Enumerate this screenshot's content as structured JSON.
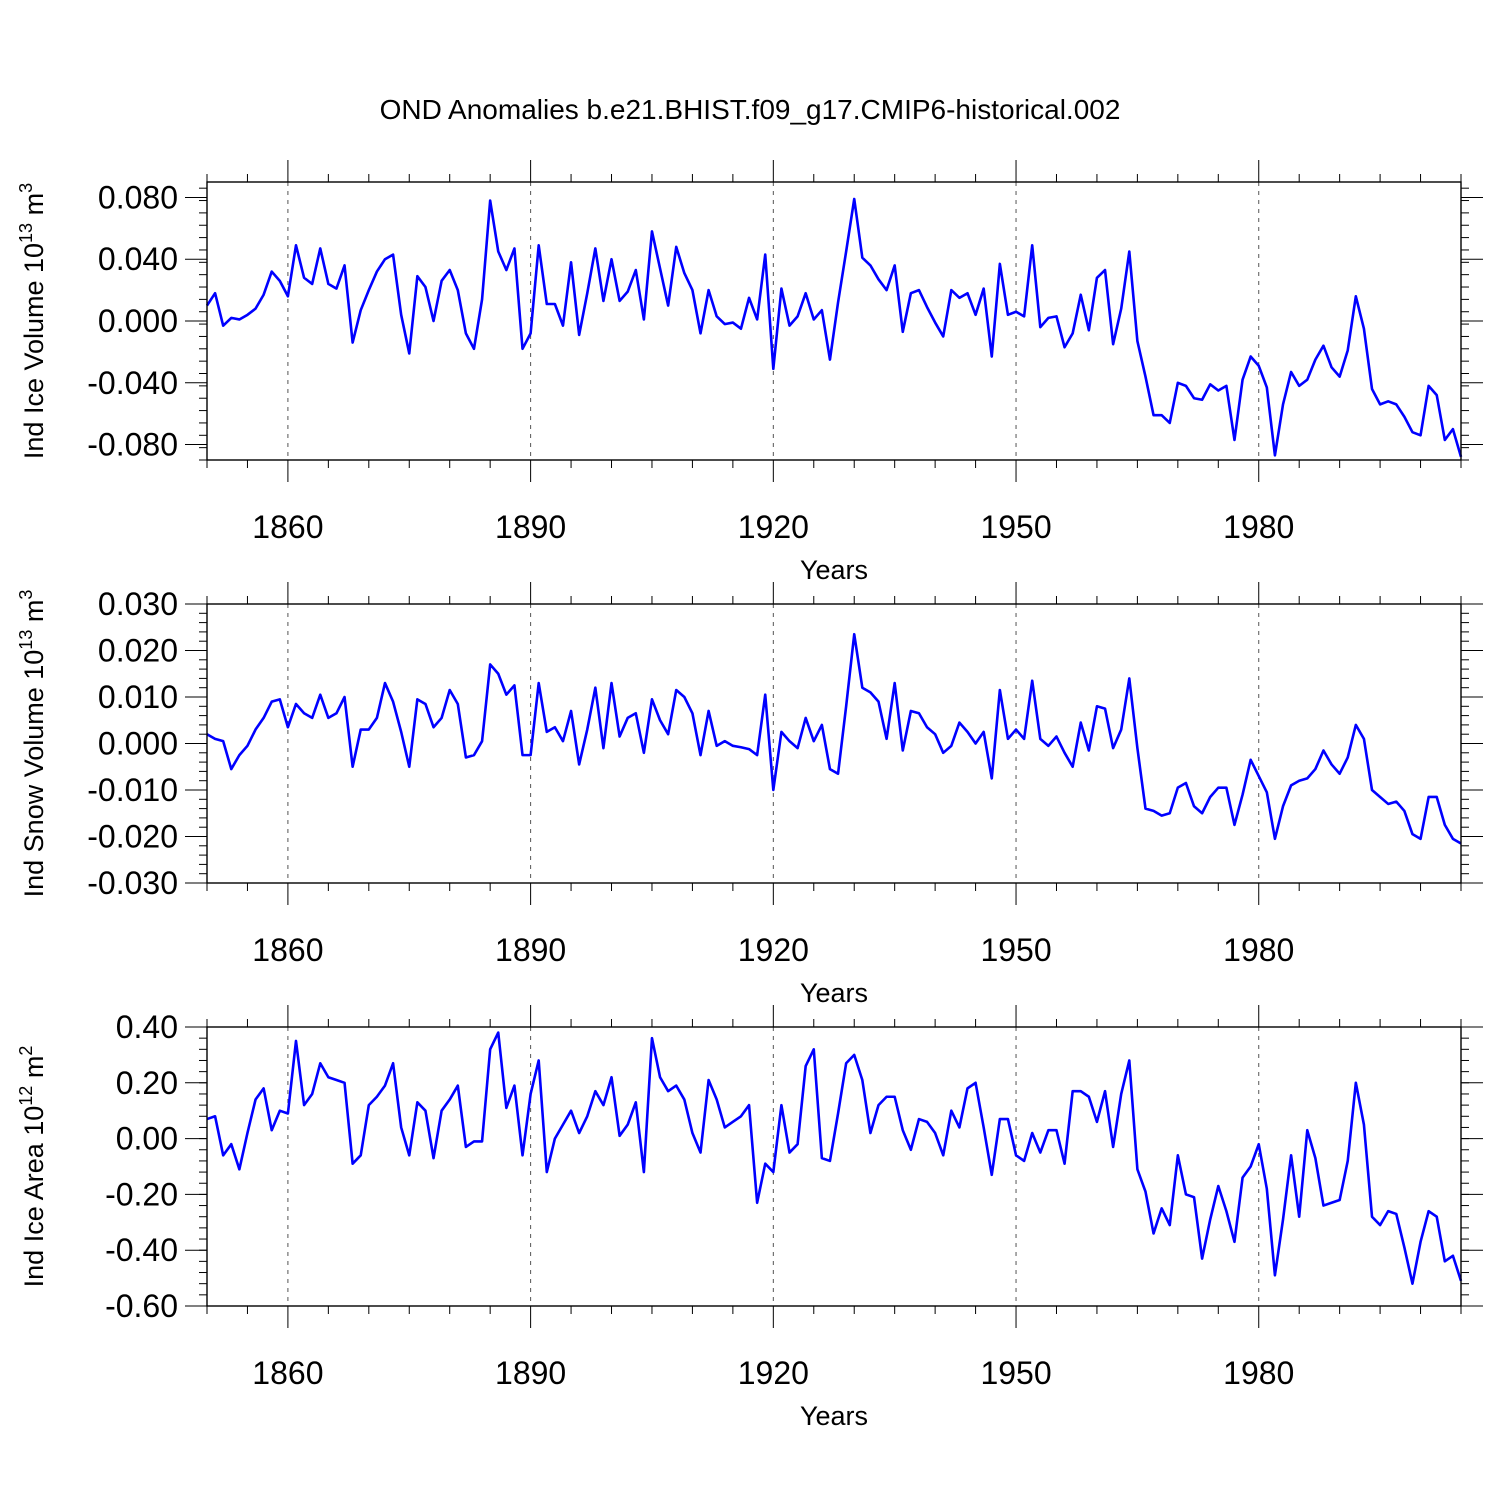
{
  "title": "OND Anomalies b.e21.BHIST.f09_g17.CMIP6-historical.002",
  "line_color": "#0000ff",
  "chart_data": [
    {
      "type": "line",
      "ylabel": "Ind Ice Volume",
      "ylabel_units_prefix": "10",
      "ylabel_units_exp": "13",
      "ylabel_units_suffix": "m",
      "ylabel_units_suffix_exp": "3",
      "xlabel": "Years",
      "xlim": [
        1850,
        2005
      ],
      "ylim": [
        -0.09,
        0.09
      ],
      "xticks": [
        1860,
        1890,
        1920,
        1950,
        1980
      ],
      "xtick_labels": [
        "1860",
        "1890",
        "1920",
        "1950",
        "1980"
      ],
      "yticks": [
        -0.08,
        -0.04,
        0.0,
        0.04,
        0.08
      ],
      "ytick_labels": [
        "-0.080",
        "-0.040",
        "0.000",
        "0.040",
        "0.080"
      ],
      "x_start": 1850,
      "values": [
        0.01,
        0.018,
        -0.003,
        0.002,
        0.001,
        0.004,
        0.008,
        0.017,
        0.032,
        0.026,
        0.016,
        0.049,
        0.028,
        0.024,
        0.047,
        0.024,
        0.021,
        0.036,
        -0.014,
        0.007,
        0.02,
        0.032,
        0.04,
        0.043,
        0.004,
        -0.021,
        0.029,
        0.022,
        0.0,
        0.026,
        0.033,
        0.02,
        -0.008,
        -0.018,
        0.014,
        0.078,
        0.045,
        0.033,
        0.047,
        -0.018,
        -0.008,
        0.049,
        0.011,
        0.011,
        -0.003,
        0.038,
        -0.009,
        0.018,
        0.047,
        0.013,
        0.04,
        0.013,
        0.019,
        0.033,
        0.001,
        0.058,
        0.034,
        0.01,
        0.048,
        0.031,
        0.02,
        -0.008,
        0.02,
        0.003,
        -0.002,
        -0.001,
        -0.005,
        0.015,
        0.001,
        0.043,
        -0.031,
        0.021,
        -0.003,
        0.003,
        0.018,
        0.001,
        0.007,
        -0.025,
        0.012,
        0.045,
        0.079,
        0.041,
        0.036,
        0.027,
        0.02,
        0.036,
        -0.007,
        0.018,
        0.02,
        0.009,
        -0.001,
        -0.01,
        0.02,
        0.015,
        0.018,
        0.004,
        0.021,
        -0.023,
        0.037,
        0.004,
        0.006,
        0.003,
        0.049,
        -0.004,
        0.002,
        0.003,
        -0.017,
        -0.008,
        0.017,
        -0.006,
        0.028,
        0.033,
        -0.015,
        0.008,
        0.045,
        -0.013,
        -0.036,
        -0.061,
        -0.061,
        -0.066,
        -0.04,
        -0.042,
        -0.05,
        -0.051,
        -0.041,
        -0.045,
        -0.042,
        -0.077,
        -0.038,
        -0.023,
        -0.029,
        -0.043,
        -0.087,
        -0.054,
        -0.033,
        -0.042,
        -0.038,
        -0.025,
        -0.016,
        -0.03,
        -0.036,
        -0.019,
        0.016,
        -0.005,
        -0.044,
        -0.054,
        -0.052,
        -0.054,
        -0.062,
        -0.072,
        -0.074,
        -0.042,
        -0.048,
        -0.077,
        -0.07,
        -0.088
      ]
    },
    {
      "type": "line",
      "ylabel": "Ind Snow Volume",
      "ylabel_units_prefix": "10",
      "ylabel_units_exp": "13",
      "ylabel_units_suffix": "m",
      "ylabel_units_suffix_exp": "3",
      "xlabel": "Years",
      "xlim": [
        1850,
        2005
      ],
      "ylim": [
        -0.03,
        0.03
      ],
      "xticks": [
        1860,
        1890,
        1920,
        1950,
        1980
      ],
      "xtick_labels": [
        "1860",
        "1890",
        "1920",
        "1950",
        "1980"
      ],
      "yticks": [
        -0.03,
        -0.02,
        -0.01,
        0.0,
        0.01,
        0.02,
        0.03
      ],
      "ytick_labels": [
        "-0.030",
        "-0.020",
        "-0.010",
        "0.000",
        "0.010",
        "0.020",
        "0.030"
      ],
      "x_start": 1850,
      "values": [
        0.002,
        0.001,
        0.0005,
        -0.0055,
        -0.0025,
        -0.0005,
        0.003,
        0.0055,
        0.009,
        0.0095,
        0.0035,
        0.0085,
        0.0065,
        0.0055,
        0.0105,
        0.0055,
        0.0065,
        0.01,
        -0.005,
        0.003,
        0.003,
        0.0055,
        0.013,
        0.009,
        0.0025,
        -0.005,
        0.0095,
        0.0085,
        0.0035,
        0.0055,
        0.0115,
        0.0085,
        -0.003,
        -0.0025,
        0.0005,
        0.017,
        0.015,
        0.0105,
        0.0125,
        -0.0025,
        -0.0025,
        0.013,
        0.0025,
        0.0035,
        0.0005,
        0.007,
        -0.0045,
        0.003,
        0.012,
        -0.001,
        0.013,
        0.0015,
        0.0055,
        0.0065,
        -0.002,
        0.0095,
        0.005,
        0.002,
        0.0115,
        0.01,
        0.0065,
        -0.0025,
        0.007,
        -0.0005,
        0.0005,
        -0.0005,
        -0.0008,
        -0.0012,
        -0.0025,
        0.0105,
        -0.01,
        0.0025,
        0.0005,
        -0.001,
        0.0055,
        0.0005,
        0.004,
        -0.0055,
        -0.0065,
        0.008,
        0.0235,
        0.012,
        0.011,
        0.009,
        0.001,
        0.013,
        -0.0015,
        0.007,
        0.0065,
        0.0035,
        0.002,
        -0.002,
        -0.0005,
        0.0045,
        0.0025,
        0.0,
        0.0025,
        -0.0075,
        0.0115,
        0.001,
        0.003,
        0.001,
        0.0135,
        0.001,
        -0.0005,
        0.0015,
        -0.002,
        -0.005,
        0.0045,
        -0.0015,
        0.008,
        0.0075,
        -0.001,
        0.003,
        0.014,
        -0.001,
        -0.014,
        -0.0145,
        -0.0155,
        -0.015,
        -0.0095,
        -0.0085,
        -0.0135,
        -0.015,
        -0.0115,
        -0.0095,
        -0.0095,
        -0.0175,
        -0.011,
        -0.0035,
        -0.007,
        -0.0105,
        -0.0205,
        -0.0135,
        -0.009,
        -0.008,
        -0.0075,
        -0.0055,
        -0.0015,
        -0.0045,
        -0.0065,
        -0.003,
        0.004,
        0.001,
        -0.01,
        -0.0115,
        -0.013,
        -0.0125,
        -0.0145,
        -0.0195,
        -0.0205,
        -0.0115,
        -0.0115,
        -0.0175,
        -0.0205,
        -0.0215
      ]
    },
    {
      "type": "line",
      "ylabel": "Ind Ice Area",
      "ylabel_units_prefix": "10",
      "ylabel_units_exp": "12",
      "ylabel_units_suffix": "m",
      "ylabel_units_suffix_exp": "2",
      "xlabel": "Years",
      "xlim": [
        1850,
        2005
      ],
      "ylim": [
        -0.6,
        0.4
      ],
      "xticks": [
        1860,
        1890,
        1920,
        1950,
        1980
      ],
      "xtick_labels": [
        "1860",
        "1890",
        "1920",
        "1950",
        "1980"
      ],
      "yticks": [
        -0.6,
        -0.4,
        -0.2,
        0.0,
        0.2,
        0.4
      ],
      "ytick_labels": [
        "-0.60",
        "-0.40",
        "-0.20",
        "0.00",
        "0.20",
        "0.40"
      ],
      "x_start": 1850,
      "values": [
        0.07,
        0.08,
        -0.06,
        -0.02,
        -0.11,
        0.02,
        0.14,
        0.18,
        0.03,
        0.1,
        0.09,
        0.35,
        0.12,
        0.16,
        0.27,
        0.22,
        0.21,
        0.2,
        -0.09,
        -0.06,
        0.12,
        0.15,
        0.19,
        0.27,
        0.04,
        -0.06,
        0.13,
        0.1,
        -0.07,
        0.1,
        0.14,
        0.19,
        -0.03,
        -0.01,
        -0.01,
        0.32,
        0.38,
        0.11,
        0.19,
        -0.06,
        0.16,
        0.28,
        -0.12,
        0.0,
        0.05,
        0.1,
        0.02,
        0.08,
        0.17,
        0.12,
        0.22,
        0.01,
        0.05,
        0.13,
        -0.12,
        0.36,
        0.22,
        0.17,
        0.19,
        0.14,
        0.02,
        -0.05,
        0.21,
        0.14,
        0.04,
        0.06,
        0.08,
        0.12,
        -0.23,
        -0.09,
        -0.12,
        0.12,
        -0.05,
        -0.02,
        0.26,
        0.32,
        -0.07,
        -0.08,
        0.09,
        0.27,
        0.3,
        0.21,
        0.02,
        0.12,
        0.15,
        0.15,
        0.03,
        -0.04,
        0.07,
        0.06,
        0.02,
        -0.06,
        0.1,
        0.04,
        0.18,
        0.2,
        0.04,
        -0.13,
        0.07,
        0.07,
        -0.06,
        -0.08,
        0.02,
        -0.05,
        0.03,
        0.03,
        -0.09,
        0.17,
        0.17,
        0.15,
        0.06,
        0.17,
        -0.03,
        0.16,
        0.28,
        -0.11,
        -0.19,
        -0.34,
        -0.25,
        -0.31,
        -0.06,
        -0.2,
        -0.21,
        -0.43,
        -0.29,
        -0.17,
        -0.26,
        -0.37,
        -0.14,
        -0.1,
        -0.02,
        -0.18,
        -0.49,
        -0.29,
        -0.06,
        -0.28,
        0.03,
        -0.07,
        -0.24,
        -0.23,
        -0.22,
        -0.08,
        0.2,
        0.05,
        -0.28,
        -0.31,
        -0.26,
        -0.27,
        -0.39,
        -0.52,
        -0.37,
        -0.26,
        -0.28,
        -0.44,
        -0.42,
        -0.51
      ]
    }
  ]
}
